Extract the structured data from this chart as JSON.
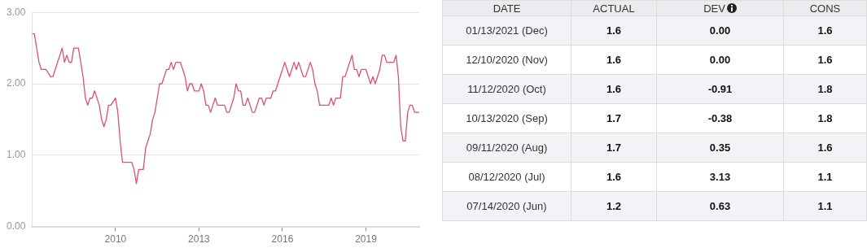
{
  "chart_data": [
    {
      "type": "line",
      "color": "#d9536b",
      "grid": "y",
      "marker": "none",
      "line_style": "solid",
      "x": [
        "2007-01",
        "2007-02",
        "2007-04",
        "2007-05",
        "2007-07",
        "2007-09",
        "2007-10",
        "2008-02",
        "2008-03",
        "2008-04",
        "2008-05",
        "2008-06",
        "2008-07",
        "2008-09",
        "2008-11",
        "2008-12",
        "2009-01",
        "2009-02",
        "2009-03",
        "2009-04",
        "2009-06",
        "2009-07",
        "2009-08",
        "2009-09",
        "2009-10",
        "2009-11",
        "2010-01",
        "2010-02",
        "2010-03",
        "2010-04",
        "2010-07",
        "2010-08",
        "2010-09",
        "2010-10",
        "2010-11",
        "2011-01",
        "2011-02",
        "2011-04",
        "2011-05",
        "2011-06",
        "2011-08",
        "2011-09",
        "2011-11",
        "2011-12",
        "2012-01",
        "2012-02",
        "2012-03",
        "2012-05",
        "2012-06",
        "2012-07",
        "2012-08",
        "2012-09",
        "2012-10",
        "2012-11",
        "2013-01",
        "2013-02",
        "2013-03",
        "2013-04",
        "2013-05",
        "2013-06",
        "2013-08",
        "2013-09",
        "2013-12",
        "2014-01",
        "2014-02",
        "2014-04",
        "2014-05",
        "2014-06",
        "2014-07",
        "2014-08",
        "2014-09",
        "2014-10",
        "2014-11",
        "2014-12",
        "2015-01",
        "2015-03",
        "2015-04",
        "2015-05",
        "2015-06",
        "2015-08",
        "2015-09",
        "2015-10",
        "2015-11",
        "2015-12",
        "2016-02",
        "2016-04",
        "2016-06",
        "2016-07",
        "2016-08",
        "2016-10",
        "2016-11",
        "2017-01",
        "2017-02",
        "2017-03",
        "2017-04",
        "2017-05",
        "2017-09",
        "2017-10",
        "2017-11",
        "2017-12",
        "2018-02",
        "2018-03",
        "2018-04",
        "2018-07",
        "2018-08",
        "2018-09",
        "2018-10",
        "2018-11",
        "2019-01",
        "2019-03",
        "2019-04",
        "2019-05",
        "2019-07",
        "2019-08",
        "2019-09",
        "2019-10",
        "2020-01",
        "2020-02",
        "2020-03",
        "2020-04",
        "2020-05",
        "2020-06",
        "2020-07",
        "2020-08",
        "2020-09",
        "2020-10",
        "2020-11",
        "2020-12"
      ],
      "values": [
        2.7,
        2.7,
        2.3,
        2.2,
        2.2,
        2.1,
        2.1,
        2.5,
        2.3,
        2.4,
        2.3,
        2.3,
        2.5,
        2.5,
        2.1,
        1.8,
        1.7,
        1.8,
        1.8,
        1.9,
        1.7,
        1.5,
        1.4,
        1.5,
        1.7,
        1.7,
        1.8,
        1.6,
        1.2,
        0.9,
        0.9,
        0.9,
        0.8,
        0.6,
        0.8,
        0.8,
        1.1,
        1.3,
        1.5,
        1.6,
        2.0,
        2.0,
        2.2,
        2.2,
        2.3,
        2.2,
        2.3,
        2.3,
        2.2,
        2.1,
        1.9,
        2.0,
        2.0,
        1.9,
        1.9,
        2.0,
        1.9,
        1.7,
        1.7,
        1.6,
        1.8,
        1.7,
        1.7,
        1.6,
        1.6,
        1.8,
        2.0,
        1.9,
        1.9,
        1.7,
        1.7,
        1.8,
        1.7,
        1.6,
        1.6,
        1.8,
        1.8,
        1.7,
        1.8,
        1.8,
        1.9,
        1.9,
        2.0,
        2.1,
        2.3,
        2.1,
        2.3,
        2.2,
        2.3,
        2.1,
        2.1,
        2.3,
        2.2,
        2.0,
        1.9,
        1.7,
        1.7,
        1.8,
        1.7,
        1.8,
        1.8,
        2.1,
        2.1,
        2.4,
        2.2,
        2.2,
        2.1,
        2.2,
        2.2,
        2.0,
        2.1,
        2.0,
        2.2,
        2.4,
        2.4,
        2.3,
        2.3,
        2.4,
        2.1,
        1.4,
        1.2,
        1.2,
        1.6,
        1.7,
        1.7,
        1.6,
        1.6,
        1.6
      ],
      "xlim": [
        "2007-01",
        "2020-12"
      ],
      "xticks": [
        "2010",
        "2013",
        "2016",
        "2019"
      ],
      "ylim": [
        0,
        3
      ],
      "yticks": [
        {
          "value": 0,
          "label": "0.00"
        },
        {
          "value": 1,
          "label": "1.00"
        },
        {
          "value": 2,
          "label": "2.00"
        },
        {
          "value": 3,
          "label": "3.00"
        }
      ]
    },
    {
      "type": "other",
      "categories": [
        "DATE",
        "ACTUAL",
        "DEV",
        "CONS"
      ],
      "cell_labels": [
        [
          "01/13/2021 (Dec)",
          "1.6",
          "0.00",
          "1.6"
        ],
        [
          "12/10/2020 (Nov)",
          "1.6",
          "0.00",
          "1.6"
        ],
        [
          "11/12/2020 (Oct)",
          "1.6",
          "-0.91",
          "1.8"
        ],
        [
          "10/13/2020 (Sep)",
          "1.7",
          "-0.38",
          "1.8"
        ],
        [
          "09/11/2020 (Aug)",
          "1.7",
          "0.35",
          "1.6"
        ],
        [
          "08/12/2020 (Jul)",
          "1.6",
          "3.13",
          "1.1"
        ],
        [
          "07/14/2020 (Jun)",
          "1.2",
          "0.63",
          "1.1"
        ]
      ]
    }
  ]
}
